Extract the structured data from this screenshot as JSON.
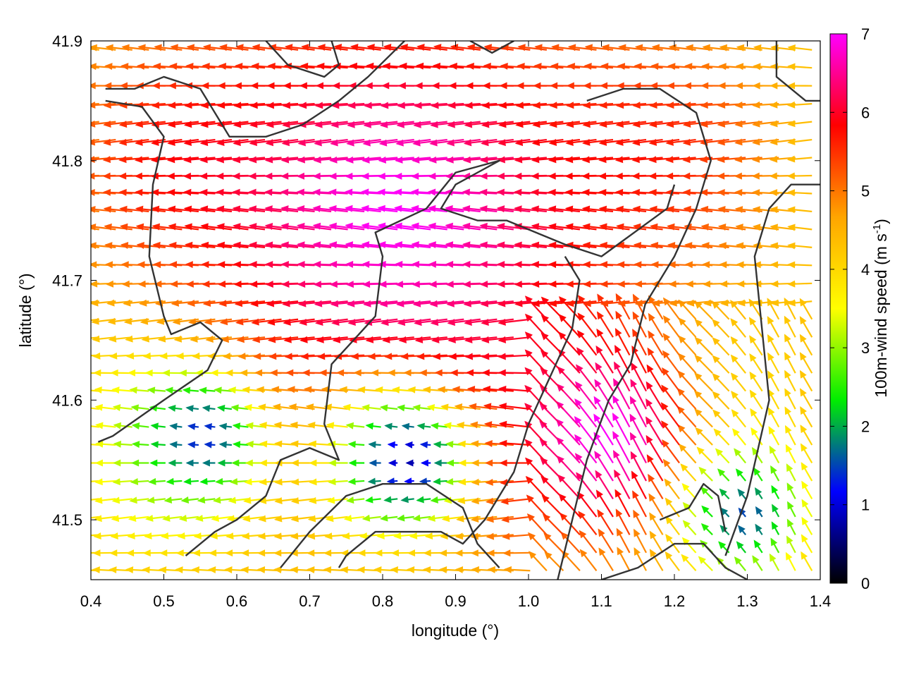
{
  "chart_data": {
    "type": "quiver",
    "xlabel": "longitude (°)",
    "ylabel": "latitude (°)",
    "xlim": [
      0.4,
      1.4
    ],
    "ylim": [
      41.45,
      41.9
    ],
    "xticks": [
      "0.4",
      "0.5",
      "0.6",
      "0.7",
      "0.8",
      "0.9",
      "1.0",
      "1.1",
      "1.2",
      "1.3",
      "1.4"
    ],
    "yticks": [
      "41.5",
      "41.6",
      "41.7",
      "41.8",
      "41.9"
    ],
    "colorbar": {
      "label": "100m-wind speed (m s",
      "label_sup": "-1",
      "label_end": ")",
      "range": [
        0,
        7
      ],
      "ticks": [
        "0",
        "1",
        "2",
        "3",
        "4",
        "5",
        "6",
        "7"
      ],
      "colors": [
        "#000000",
        "#0000ff",
        "#00ee00",
        "#ffff00",
        "#ffa500",
        "#ff0000",
        "#ff00ff"
      ]
    },
    "wind_field": {
      "grid": [
        44,
        30
      ],
      "dominant_direction": "from east",
      "speed_regions": [
        {
          "lon": 0.85,
          "lat": 41.76,
          "speed": 7.0,
          "radius": 0.3
        },
        {
          "lon": 1.12,
          "lat": 41.56,
          "speed": 7.0,
          "radius": 0.14
        },
        {
          "lon": 0.56,
          "lat": 41.57,
          "speed": 1.3,
          "radius": 0.08
        },
        {
          "lon": 0.84,
          "lat": 41.55,
          "speed": 0.8,
          "radius": 0.1
        },
        {
          "lon": 1.3,
          "lat": 41.5,
          "speed": 1.5,
          "radius": 0.08
        }
      ]
    },
    "boundaries": [
      {
        "name": "border-a",
        "points": [
          [
            0.41,
            41.565
          ],
          [
            0.43,
            41.57
          ],
          [
            0.5,
            41.6
          ],
          [
            0.56,
            41.625
          ],
          [
            0.58,
            41.65
          ],
          [
            0.55,
            41.665
          ],
          [
            0.51,
            41.655
          ],
          [
            0.5,
            41.67
          ],
          [
            0.48,
            41.72
          ],
          [
            0.485,
            41.78
          ],
          [
            0.5,
            41.82
          ],
          [
            0.47,
            41.845
          ],
          [
            0.42,
            41.85
          ]
        ]
      },
      {
        "name": "border-b",
        "points": [
          [
            0.42,
            41.86
          ],
          [
            0.46,
            41.86
          ],
          [
            0.5,
            41.87
          ],
          [
            0.55,
            41.86
          ],
          [
            0.59,
            41.82
          ],
          [
            0.64,
            41.82
          ],
          [
            0.69,
            41.83
          ],
          [
            0.74,
            41.85
          ],
          [
            0.78,
            41.87
          ],
          [
            0.83,
            41.9
          ]
        ]
      },
      {
        "name": "border-c",
        "points": [
          [
            0.53,
            41.47
          ],
          [
            0.57,
            41.49
          ],
          [
            0.6,
            41.5
          ],
          [
            0.64,
            41.52
          ],
          [
            0.66,
            41.55
          ],
          [
            0.7,
            41.56
          ],
          [
            0.74,
            41.55
          ],
          [
            0.72,
            41.58
          ],
          [
            0.73,
            41.63
          ],
          [
            0.79,
            41.67
          ],
          [
            0.8,
            41.72
          ],
          [
            0.79,
            41.74
          ],
          [
            0.86,
            41.76
          ],
          [
            0.9,
            41.79
          ],
          [
            0.96,
            41.8
          ],
          [
            0.93,
            41.79
          ],
          [
            0.9,
            41.78
          ],
          [
            0.88,
            41.76
          ],
          [
            0.93,
            41.75
          ],
          [
            0.97,
            41.75
          ],
          [
            1.05,
            41.73
          ],
          [
            1.1,
            41.72
          ],
          [
            1.19,
            41.76
          ],
          [
            1.2,
            41.78
          ]
        ]
      },
      {
        "name": "border-d",
        "points": [
          [
            0.66,
            41.46
          ],
          [
            0.7,
            41.49
          ],
          [
            0.75,
            41.52
          ],
          [
            0.8,
            41.53
          ],
          [
            0.86,
            41.53
          ],
          [
            0.91,
            41.51
          ],
          [
            0.93,
            41.48
          ],
          [
            0.96,
            41.46
          ]
        ]
      },
      {
        "name": "border-e",
        "points": [
          [
            0.74,
            41.46
          ],
          [
            0.75,
            41.47
          ],
          [
            0.79,
            41.49
          ],
          [
            0.83,
            41.49
          ],
          [
            0.88,
            41.49
          ],
          [
            0.91,
            41.48
          ],
          [
            0.94,
            41.5
          ],
          [
            0.98,
            41.54
          ],
          [
            1.0,
            41.58
          ],
          [
            1.03,
            41.62
          ],
          [
            1.06,
            41.66
          ],
          [
            1.07,
            41.7
          ],
          [
            1.05,
            41.72
          ]
        ]
      },
      {
        "name": "border-f",
        "points": [
          [
            1.04,
            41.45
          ],
          [
            1.06,
            41.5
          ],
          [
            1.08,
            41.55
          ],
          [
            1.11,
            41.6
          ],
          [
            1.14,
            41.63
          ],
          [
            1.16,
            41.68
          ],
          [
            1.2,
            41.72
          ],
          [
            1.23,
            41.76
          ],
          [
            1.25,
            41.8
          ],
          [
            1.23,
            41.84
          ],
          [
            1.18,
            41.86
          ],
          [
            1.13,
            41.86
          ],
          [
            1.08,
            41.85
          ]
        ]
      },
      {
        "name": "border-g",
        "points": [
          [
            1.1,
            41.45
          ],
          [
            1.15,
            41.46
          ],
          [
            1.2,
            41.48
          ],
          [
            1.24,
            41.48
          ],
          [
            1.27,
            41.46
          ],
          [
            1.3,
            41.45
          ]
        ]
      },
      {
        "name": "border-h",
        "points": [
          [
            1.18,
            41.5
          ],
          [
            1.22,
            41.51
          ],
          [
            1.24,
            41.53
          ],
          [
            1.26,
            41.52
          ],
          [
            1.27,
            41.49
          ]
        ]
      },
      {
        "name": "border-i",
        "points": [
          [
            1.27,
            41.47
          ],
          [
            1.3,
            41.52
          ],
          [
            1.33,
            41.6
          ],
          [
            1.32,
            41.66
          ],
          [
            1.31,
            41.72
          ],
          [
            1.33,
            41.76
          ],
          [
            1.36,
            41.78
          ],
          [
            1.4,
            41.78
          ]
        ]
      },
      {
        "name": "border-j",
        "points": [
          [
            1.34,
            41.9
          ],
          [
            1.34,
            41.87
          ],
          [
            1.38,
            41.85
          ],
          [
            1.4,
            41.85
          ]
        ]
      },
      {
        "name": "border-k",
        "points": [
          [
            0.64,
            41.9
          ],
          [
            0.67,
            41.88
          ],
          [
            0.72,
            41.87
          ],
          [
            0.74,
            41.88
          ],
          [
            0.73,
            41.9
          ]
        ]
      },
      {
        "name": "border-l",
        "points": [
          [
            0.92,
            41.9
          ],
          [
            0.95,
            41.89
          ],
          [
            0.98,
            41.9
          ]
        ]
      }
    ]
  }
}
